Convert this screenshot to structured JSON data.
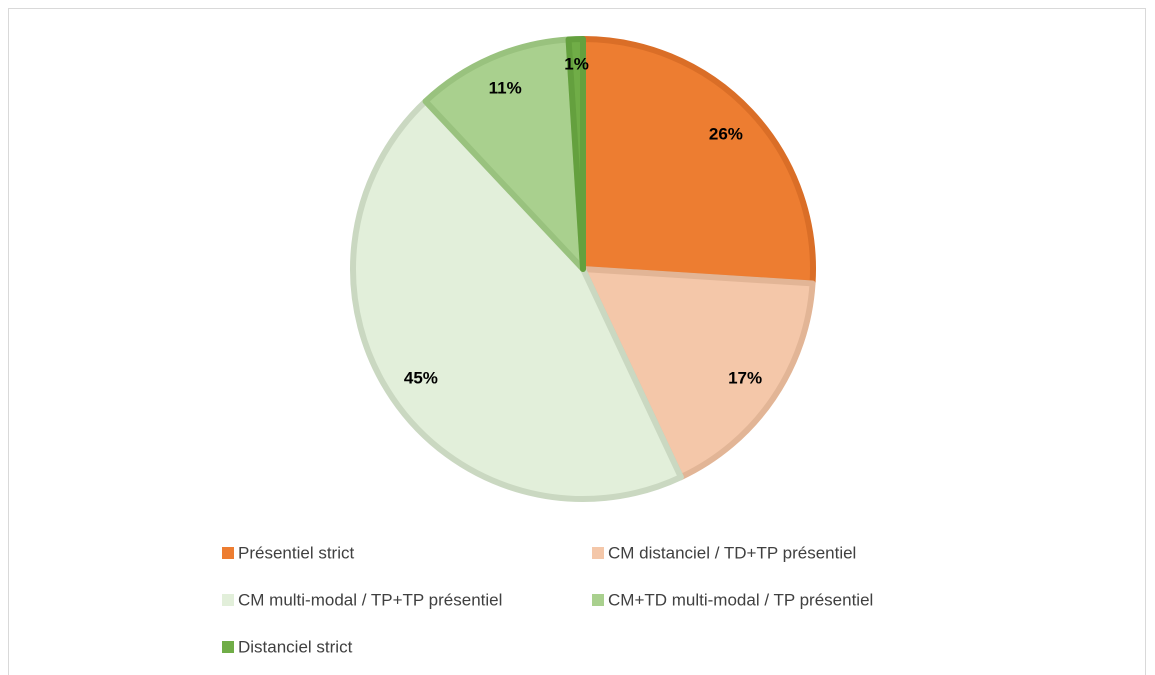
{
  "chart_data": {
    "type": "pie",
    "categories": [
      "Présentiel strict",
      "CM distanciel / TD+TP présentiel",
      "CM multi-modal / TP+TP présentiel",
      "CM+TD multi-modal / TP présentiel",
      "Distanciel strict"
    ],
    "values": [
      26,
      17,
      45,
      11,
      1
    ],
    "value_labels": [
      "26%",
      "17%",
      "45%",
      "11%",
      "1%"
    ],
    "colors": [
      "#ED7D31",
      "#F4C7A9",
      "#E2EFDA",
      "#A9D08E",
      "#70AD47"
    ],
    "edge_colors": [
      "#DA6E27",
      "#E2B596",
      "#CAD8C1",
      "#99C27E",
      "#64A03E"
    ],
    "legend": "bottom"
  }
}
